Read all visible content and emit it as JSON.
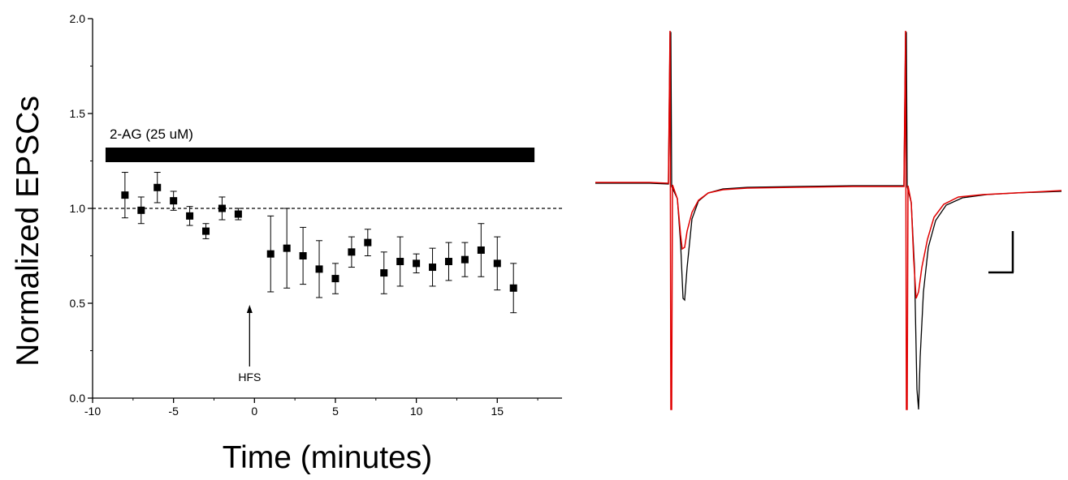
{
  "chart_data": [
    {
      "type": "scatter",
      "xlabel": "Time (minutes)",
      "ylabel": "Normalized EPSCs",
      "xlim": [
        -10,
        19
      ],
      "ylim": [
        0,
        2.0
      ],
      "x_ticks": [
        "-10",
        "-5",
        "0",
        "5",
        "10",
        "15"
      ],
      "y_ticks": [
        "0.0",
        "0.5",
        "1.0",
        "1.5",
        "2.0"
      ],
      "baseline": 1.0,
      "bar_label": "2-AG (25 uM)",
      "bar_range": [
        -9.2,
        17.3
      ],
      "arrow_label": "HFS",
      "arrow_x": -0.3,
      "series": [
        {
          "x": [
            -8,
            -7,
            -6,
            -5,
            -4,
            -3,
            -2,
            -1,
            1,
            2,
            3,
            4,
            5,
            6,
            7,
            8,
            9,
            10,
            11,
            12,
            13,
            14,
            15,
            16
          ],
          "y": [
            1.07,
            0.99,
            1.11,
            1.04,
            0.96,
            0.88,
            1.0,
            0.97,
            0.76,
            0.79,
            0.75,
            0.68,
            0.63,
            0.77,
            0.82,
            0.66,
            0.72,
            0.71,
            0.69,
            0.72,
            0.73,
            0.78,
            0.71,
            0.58
          ],
          "err": [
            0.12,
            0.07,
            0.08,
            0.05,
            0.05,
            0.04,
            0.06,
            0.03,
            0.2,
            0.21,
            0.15,
            0.15,
            0.08,
            0.08,
            0.07,
            0.11,
            0.13,
            0.05,
            0.1,
            0.1,
            0.09,
            0.14,
            0.14,
            0.13
          ]
        }
      ]
    },
    {
      "type": "line",
      "series": [
        {
          "color": "#000000"
        },
        {
          "color": "#e00000"
        }
      ]
    }
  ]
}
